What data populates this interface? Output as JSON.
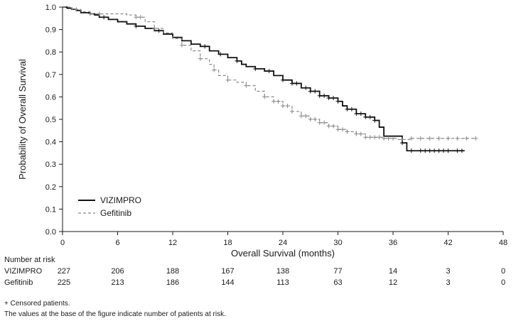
{
  "chart_data": {
    "type": "line",
    "xlabel": "Overall Survival (months)",
    "ylabel": "Probability of Overall Survival",
    "xlim": [
      0,
      48
    ],
    "ylim": [
      0,
      1
    ],
    "xticks": [
      "0",
      "6",
      "12",
      "18",
      "24",
      "30",
      "36",
      "42",
      "48"
    ],
    "yticks": [
      "0.0",
      "0.1",
      "0.2",
      "0.3",
      "0.4",
      "0.5",
      "0.6",
      "0.7",
      "0.8",
      "0.9",
      "1.0"
    ],
    "legend_position": "bottom-left",
    "series": [
      {
        "name": "VIZIMPRO",
        "color": "#111111",
        "style": "solid",
        "points": [
          [
            0,
            1.0
          ],
          [
            0.5,
            0.995
          ],
          [
            1.0,
            0.99
          ],
          [
            1.5,
            0.985
          ],
          [
            2,
            0.975
          ],
          [
            3,
            0.97
          ],
          [
            3.5,
            0.965
          ],
          [
            4,
            0.955
          ],
          [
            5,
            0.945
          ],
          [
            6,
            0.935
          ],
          [
            7,
            0.925
          ],
          [
            8,
            0.915
          ],
          [
            9,
            0.905
          ],
          [
            10,
            0.895
          ],
          [
            11,
            0.88
          ],
          [
            12,
            0.865
          ],
          [
            13,
            0.85
          ],
          [
            14,
            0.835
          ],
          [
            15,
            0.825
          ],
          [
            16,
            0.805
          ],
          [
            17,
            0.79
          ],
          [
            18,
            0.775
          ],
          [
            19,
            0.76
          ],
          [
            19.5,
            0.745
          ],
          [
            20,
            0.735
          ],
          [
            21,
            0.725
          ],
          [
            22,
            0.715
          ],
          [
            23,
            0.695
          ],
          [
            24,
            0.675
          ],
          [
            25,
            0.66
          ],
          [
            26,
            0.64
          ],
          [
            27,
            0.625
          ],
          [
            28,
            0.605
          ],
          [
            29,
            0.595
          ],
          [
            30,
            0.58
          ],
          [
            30.5,
            0.56
          ],
          [
            31,
            0.545
          ],
          [
            32,
            0.525
          ],
          [
            33,
            0.51
          ],
          [
            34,
            0.495
          ],
          [
            34.5,
            0.465
          ],
          [
            35,
            0.425
          ],
          [
            36,
            0.425
          ],
          [
            37,
            0.395
          ],
          [
            37.5,
            0.36
          ],
          [
            38,
            0.36
          ],
          [
            40,
            0.36
          ],
          [
            42,
            0.36
          ],
          [
            43.8,
            0.36
          ]
        ],
        "censor_x": [
          4.5,
          8,
          10.5,
          15.5,
          17.2,
          19,
          21,
          22.5,
          24,
          25,
          25.5,
          26.5,
          27,
          27.5,
          28,
          28.5,
          29,
          29.5,
          30,
          31,
          31.5,
          32,
          32.5,
          33,
          33.5,
          34,
          37,
          38,
          39,
          39.5,
          40,
          40.5,
          41,
          41.5,
          42,
          43,
          43.5
        ]
      },
      {
        "name": "Gefitinib",
        "color": "#888888",
        "style": "dashed",
        "points": [
          [
            0,
            1.0
          ],
          [
            1,
            0.99
          ],
          [
            2,
            0.98
          ],
          [
            3,
            0.97
          ],
          [
            5,
            0.97
          ],
          [
            7,
            0.965
          ],
          [
            8,
            0.955
          ],
          [
            9,
            0.935
          ],
          [
            10,
            0.905
          ],
          [
            11,
            0.885
          ],
          [
            12,
            0.86
          ],
          [
            13,
            0.83
          ],
          [
            14,
            0.805
          ],
          [
            15,
            0.77
          ],
          [
            16,
            0.745
          ],
          [
            16.5,
            0.72
          ],
          [
            17,
            0.695
          ],
          [
            18,
            0.675
          ],
          [
            19,
            0.665
          ],
          [
            20,
            0.65
          ],
          [
            21,
            0.625
          ],
          [
            22,
            0.6
          ],
          [
            23,
            0.58
          ],
          [
            24,
            0.56
          ],
          [
            25,
            0.535
          ],
          [
            26,
            0.515
          ],
          [
            27,
            0.5
          ],
          [
            28,
            0.485
          ],
          [
            29,
            0.47
          ],
          [
            30,
            0.455
          ],
          [
            31,
            0.445
          ],
          [
            32,
            0.435
          ],
          [
            33,
            0.42
          ],
          [
            35,
            0.415
          ],
          [
            36,
            0.415
          ],
          [
            36.5,
            0.41
          ],
          [
            38,
            0.415
          ],
          [
            40,
            0.415
          ],
          [
            42,
            0.415
          ],
          [
            44,
            0.415
          ],
          [
            45,
            0.415
          ]
        ],
        "censor_x": [
          1.5,
          3,
          4,
          8,
          8.5,
          10,
          13,
          15,
          16.5,
          18,
          20,
          22,
          23,
          23.5,
          24,
          24.5,
          25,
          26,
          26.5,
          27,
          27.5,
          28,
          28.5,
          29,
          29.5,
          30,
          30.5,
          31,
          32,
          32.5,
          33,
          33.5,
          34,
          34.5,
          35,
          35.5,
          36,
          37,
          38,
          39,
          40,
          41,
          42,
          43,
          44,
          45
        ]
      }
    ],
    "risk_table": {
      "title": "Number at risk",
      "times": [
        0,
        6,
        12,
        18,
        24,
        30,
        36,
        42,
        48
      ],
      "rows": [
        {
          "label": "VIZIMPRO",
          "counts": [
            "227",
            "206",
            "188",
            "167",
            "138",
            "77",
            "14",
            "3",
            "0"
          ]
        },
        {
          "label": "Gefitinib",
          "counts": [
            "225",
            "213",
            "186",
            "144",
            "113",
            "63",
            "12",
            "3",
            "0"
          ]
        }
      ]
    },
    "footnotes": [
      "+ Censored patients.",
      "The values at the base of the figure indicate number of patients at risk."
    ]
  }
}
